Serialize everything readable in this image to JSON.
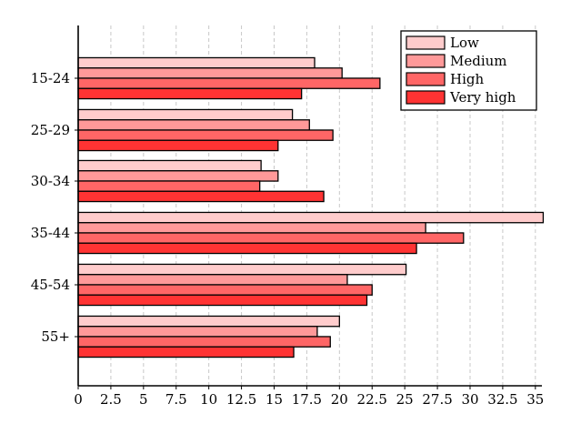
{
  "chart_data": {
    "type": "bar",
    "orientation": "horizontal",
    "title": "",
    "xlabel": "",
    "ylabel": "",
    "categories": [
      "15-24",
      "25-29",
      "30-34",
      "35-44",
      "45-54",
      "55+"
    ],
    "series": [
      {
        "name": "Low",
        "color": "#ffcccc",
        "values": [
          18.1,
          16.4,
          14.0,
          35.6,
          25.1,
          20.0
        ]
      },
      {
        "name": "Medium",
        "color": "#ff9999",
        "values": [
          20.2,
          17.7,
          15.3,
          26.6,
          20.6,
          18.3
        ]
      },
      {
        "name": "High",
        "color": "#ff6666",
        "values": [
          23.1,
          19.5,
          13.9,
          29.5,
          22.5,
          19.3
        ]
      },
      {
        "name": "Very high",
        "color": "#ff3333",
        "values": [
          17.1,
          15.3,
          18.8,
          25.9,
          22.1,
          16.5
        ]
      }
    ],
    "xlim": [
      0,
      35.5
    ],
    "xticks": [
      "0",
      "2.5",
      "5",
      "7.5",
      "10",
      "12.5",
      "15",
      "17.5",
      "20",
      "22.5",
      "25",
      "27.5",
      "30",
      "32.5",
      "35"
    ],
    "grid": "vertical-dashed",
    "legend_position": "top-right"
  }
}
